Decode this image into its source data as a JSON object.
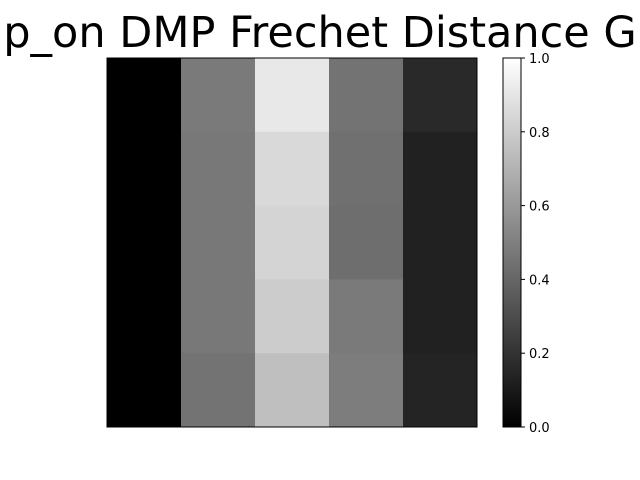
{
  "chart_data": {
    "type": "heatmap",
    "title": "p_on DMP Frechet Distance G",
    "xlabel": "",
    "ylabel": "",
    "colormap": "gray",
    "rows": 5,
    "cols": 5,
    "values": [
      [
        0.0,
        0.48,
        0.91,
        0.45,
        0.16
      ],
      [
        0.0,
        0.47,
        0.85,
        0.44,
        0.13
      ],
      [
        0.0,
        0.47,
        0.83,
        0.43,
        0.13
      ],
      [
        0.0,
        0.47,
        0.8,
        0.48,
        0.13
      ],
      [
        0.0,
        0.45,
        0.75,
        0.49,
        0.14
      ]
    ],
    "colorbar": {
      "vmin": 0.0,
      "vmax": 1.0,
      "ticks": [
        "0.0",
        "0.2",
        "0.4",
        "0.6",
        "0.8",
        "1.0"
      ],
      "tick_values": [
        0.0,
        0.2,
        0.4,
        0.6,
        0.8,
        1.0
      ]
    },
    "axes_ticks_visible": false
  }
}
